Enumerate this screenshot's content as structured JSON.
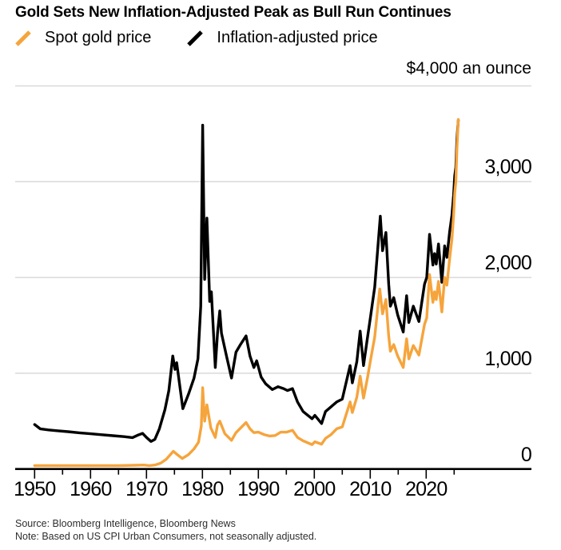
{
  "header": {
    "title": "Gold Sets New Inflation-Adjusted Peak as Bull Run Continues",
    "axis_unit_label": "$4,000 an ounce"
  },
  "legend": [
    {
      "label": "Spot gold price",
      "color": "#F6A43C",
      "icon": "slash-icon"
    },
    {
      "label": "Inflation-adjusted price",
      "color": "#000000",
      "icon": "slash-icon"
    }
  ],
  "footer": {
    "source": "Source: Bloomberg Intelligence, Bloomberg News",
    "note": "Note: Based on US CPI Urban Consumers, not seasonally adjusted."
  },
  "colors": {
    "accent_orange": "#F6A43C",
    "series_black": "#000000",
    "gridline": "#D9D9D9",
    "axis_line": "#000000",
    "footnote_text": "#2E2E2E",
    "background": "#FFFFFF"
  },
  "chart_data": {
    "type": "line",
    "title": "Gold Sets New Inflation-Adjusted Peak as Bull Run Continues",
    "unit_label": "$4,000 an ounce",
    "grid": "horizontal",
    "legend_position": "top",
    "xlim": [
      1950,
      2026
    ],
    "ylim": [
      0,
      4000
    ],
    "x_axis": {
      "tick_interval": 5,
      "tick_start": 1950,
      "tick_end": 2025,
      "labels": [
        {
          "value": 1950,
          "text": "1950"
        },
        {
          "value": 1960,
          "text": "1960"
        },
        {
          "value": 1970,
          "text": "1970"
        },
        {
          "value": 1980,
          "text": "1980"
        },
        {
          "value": 1990,
          "text": "1990"
        },
        {
          "value": 2000,
          "text": "2000"
        },
        {
          "value": 2010,
          "text": "2010"
        },
        {
          "value": 2020,
          "text": "2020"
        }
      ]
    },
    "y_axis": {
      "gridline_values": [
        1000,
        2000,
        3000,
        4000
      ],
      "baseline_value": 0,
      "labels": [
        {
          "value": 3000,
          "text": "3,000"
        },
        {
          "value": 2000,
          "text": "2,000"
        },
        {
          "value": 1000,
          "text": "1,000"
        },
        {
          "value": 0,
          "text": "0"
        }
      ]
    },
    "series": [
      {
        "name": "Inflation-adjusted price",
        "color": "#000000",
        "width": 3.4,
        "points": [
          [
            1950,
            465
          ],
          [
            1951,
            420
          ],
          [
            1952.5,
            408
          ],
          [
            1954,
            400
          ],
          [
            1956,
            390
          ],
          [
            1958,
            378
          ],
          [
            1960,
            368
          ],
          [
            1962,
            358
          ],
          [
            1964,
            348
          ],
          [
            1966,
            338
          ],
          [
            1967.5,
            328
          ],
          [
            1968.5,
            355
          ],
          [
            1969.3,
            372
          ],
          [
            1970,
            330
          ],
          [
            1970.8,
            288
          ],
          [
            1971.5,
            310
          ],
          [
            1972.3,
            420
          ],
          [
            1973.3,
            620
          ],
          [
            1974,
            820
          ],
          [
            1974.7,
            1180
          ],
          [
            1975.1,
            1040
          ],
          [
            1975.4,
            1110
          ],
          [
            1976.5,
            630
          ],
          [
            1977.5,
            780
          ],
          [
            1978.5,
            950
          ],
          [
            1979.2,
            1150
          ],
          [
            1979.7,
            1700
          ],
          [
            1980.05,
            3590
          ],
          [
            1980.4,
            1980
          ],
          [
            1980.8,
            2620
          ],
          [
            1981.3,
            1750
          ],
          [
            1981.6,
            1850
          ],
          [
            1982.3,
            1060
          ],
          [
            1982.7,
            1420
          ],
          [
            1983.1,
            1650
          ],
          [
            1983.4,
            1420
          ],
          [
            1984.3,
            1180
          ],
          [
            1985.2,
            950
          ],
          [
            1986,
            1220
          ],
          [
            1986.8,
            1300
          ],
          [
            1987.8,
            1390
          ],
          [
            1988.5,
            1180
          ],
          [
            1989.2,
            1060
          ],
          [
            1989.7,
            1130
          ],
          [
            1990.5,
            960
          ],
          [
            1991.3,
            890
          ],
          [
            1992.5,
            830
          ],
          [
            1993.5,
            860
          ],
          [
            1994.5,
            840
          ],
          [
            1995.2,
            820
          ],
          [
            1996.1,
            840
          ],
          [
            1997,
            700
          ],
          [
            1998,
            600
          ],
          [
            1999.6,
            525
          ],
          [
            2000.1,
            560
          ],
          [
            2001.3,
            475
          ],
          [
            2002,
            600
          ],
          [
            2003,
            650
          ],
          [
            2004,
            700
          ],
          [
            2005,
            730
          ],
          [
            2006.4,
            1080
          ],
          [
            2006.8,
            900
          ],
          [
            2007.6,
            1120
          ],
          [
            2008.2,
            1440
          ],
          [
            2008.8,
            1080
          ],
          [
            2009.5,
            1370
          ],
          [
            2010,
            1570
          ],
          [
            2010.8,
            1900
          ],
          [
            2011.8,
            2640
          ],
          [
            2012.2,
            2280
          ],
          [
            2012.8,
            2470
          ],
          [
            2013.3,
            1930
          ],
          [
            2013.6,
            1700
          ],
          [
            2014.2,
            1790
          ],
          [
            2014.9,
            1610
          ],
          [
            2015.9,
            1430
          ],
          [
            2016.5,
            1810
          ],
          [
            2016.9,
            1530
          ],
          [
            2017.7,
            1700
          ],
          [
            2018.7,
            1540
          ],
          [
            2019.7,
            1930
          ],
          [
            2020.1,
            2000
          ],
          [
            2020.6,
            2450
          ],
          [
            2021.2,
            2130
          ],
          [
            2021.5,
            2250
          ],
          [
            2021.8,
            2140
          ],
          [
            2022.2,
            2350
          ],
          [
            2022.8,
            1950
          ],
          [
            2023.3,
            2330
          ],
          [
            2023.7,
            2210
          ],
          [
            2024.2,
            2480
          ],
          [
            2024.6,
            2650
          ],
          [
            2024.9,
            2860
          ],
          [
            2025.1,
            3060
          ],
          [
            2025.3,
            3150
          ],
          [
            2025.5,
            3450
          ],
          [
            2025.75,
            3640
          ]
        ]
      },
      {
        "name": "Spot gold price",
        "color": "#F6A43C",
        "width": 3.4,
        "points": [
          [
            1950,
            35
          ],
          [
            1955,
            35
          ],
          [
            1960,
            35
          ],
          [
            1965,
            35
          ],
          [
            1968,
            39
          ],
          [
            1969.5,
            42
          ],
          [
            1970.5,
            36
          ],
          [
            1971.5,
            42
          ],
          [
            1972.5,
            60
          ],
          [
            1973.5,
            100
          ],
          [
            1974.8,
            185
          ],
          [
            1975.5,
            150
          ],
          [
            1976.4,
            110
          ],
          [
            1977.5,
            150
          ],
          [
            1978.5,
            210
          ],
          [
            1979.3,
            280
          ],
          [
            1979.8,
            450
          ],
          [
            1980.05,
            850
          ],
          [
            1980.4,
            500
          ],
          [
            1980.8,
            670
          ],
          [
            1981.5,
            430
          ],
          [
            1982.3,
            330
          ],
          [
            1982.7,
            460
          ],
          [
            1983.1,
            500
          ],
          [
            1984,
            370
          ],
          [
            1985.2,
            300
          ],
          [
            1986,
            380
          ],
          [
            1987.8,
            486
          ],
          [
            1988.5,
            420
          ],
          [
            1989.2,
            380
          ],
          [
            1990,
            385
          ],
          [
            1991,
            360
          ],
          [
            1992,
            345
          ],
          [
            1993,
            350
          ],
          [
            1994,
            385
          ],
          [
            1995,
            385
          ],
          [
            1996.1,
            405
          ],
          [
            1997,
            330
          ],
          [
            1998,
            295
          ],
          [
            1999.6,
            255
          ],
          [
            2000.1,
            285
          ],
          [
            2001.3,
            260
          ],
          [
            2002,
            320
          ],
          [
            2003,
            360
          ],
          [
            2004,
            420
          ],
          [
            2005,
            440
          ],
          [
            2006.4,
            700
          ],
          [
            2006.8,
            590
          ],
          [
            2007.6,
            750
          ],
          [
            2008.2,
            970
          ],
          [
            2008.8,
            740
          ],
          [
            2009.5,
            950
          ],
          [
            2010,
            1120
          ],
          [
            2010.8,
            1380
          ],
          [
            2011.7,
            1880
          ],
          [
            2012.2,
            1620
          ],
          [
            2012.8,
            1770
          ],
          [
            2013.3,
            1390
          ],
          [
            2013.6,
            1230
          ],
          [
            2014.2,
            1300
          ],
          [
            2014.9,
            1180
          ],
          [
            2015.9,
            1060
          ],
          [
            2016.5,
            1360
          ],
          [
            2016.9,
            1150
          ],
          [
            2017.7,
            1290
          ],
          [
            2018.7,
            1190
          ],
          [
            2019.7,
            1510
          ],
          [
            2020.1,
            1580
          ],
          [
            2020.6,
            2030
          ],
          [
            2021.2,
            1740
          ],
          [
            2021.5,
            1850
          ],
          [
            2021.8,
            1770
          ],
          [
            2022.2,
            1960
          ],
          [
            2022.8,
            1640
          ],
          [
            2023.3,
            2000
          ],
          [
            2023.7,
            1920
          ],
          [
            2024.2,
            2200
          ],
          [
            2024.6,
            2400
          ],
          [
            2024.9,
            2650
          ],
          [
            2025.1,
            2880
          ],
          [
            2025.3,
            3000
          ],
          [
            2025.5,
            3350
          ],
          [
            2025.75,
            3650
          ]
        ]
      }
    ]
  }
}
